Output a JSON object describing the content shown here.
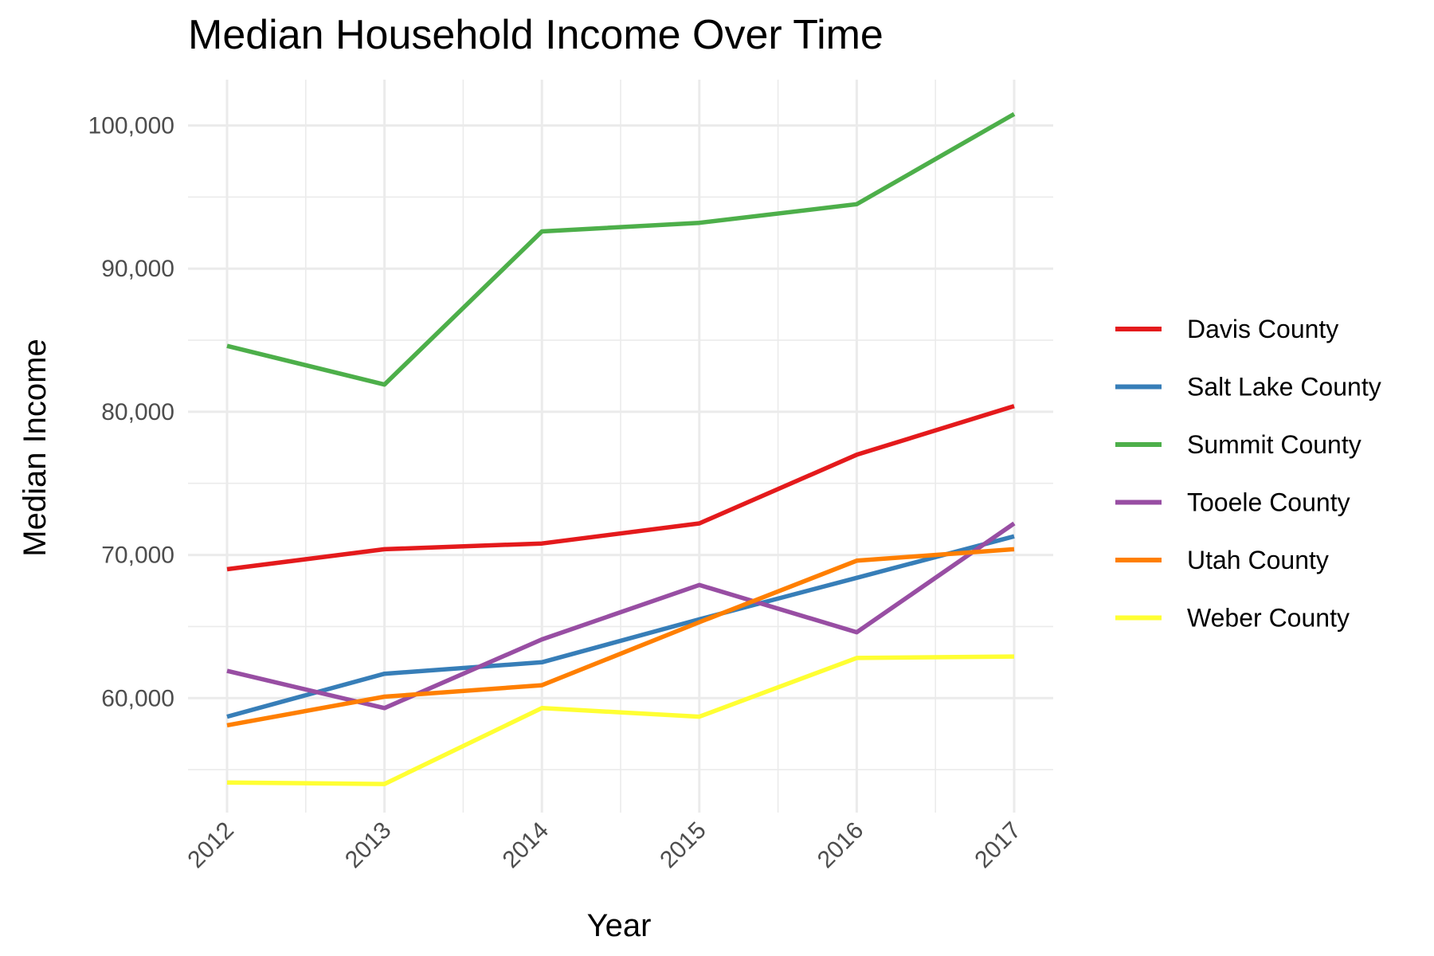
{
  "chart_data": {
    "type": "line",
    "title": "Median Household Income Over Time",
    "xlabel": "Year",
    "ylabel": "Median Income",
    "x": [
      2012,
      2013,
      2014,
      2015,
      2016,
      2017
    ],
    "x_tick_labels": [
      "2012",
      "2013",
      "2014",
      "2015",
      "2016",
      "2017"
    ],
    "y_ticks": [
      60000,
      70000,
      80000,
      90000,
      100000
    ],
    "y_tick_labels": [
      "60,000",
      "70,000",
      "80,000",
      "90,000",
      "100,000"
    ],
    "ylim": [
      52000,
      103200
    ],
    "grid": true,
    "legend_position": "right",
    "series": [
      {
        "name": "Davis County",
        "color": "#E41A1C",
        "values": [
          69000,
          70400,
          70800,
          72200,
          77000,
          80400
        ]
      },
      {
        "name": "Salt Lake County",
        "color": "#377EB8",
        "values": [
          58700,
          61700,
          62500,
          65500,
          68400,
          71300
        ]
      },
      {
        "name": "Summit County",
        "color": "#4DAF4A",
        "values": [
          84600,
          81900,
          92600,
          93200,
          94500,
          100800
        ]
      },
      {
        "name": "Tooele County",
        "color": "#984EA3",
        "values": [
          61900,
          59300,
          64100,
          67900,
          64600,
          72200
        ]
      },
      {
        "name": "Utah County",
        "color": "#FF7F00",
        "values": [
          58100,
          60100,
          60900,
          65300,
          69600,
          70400
        ]
      },
      {
        "name": "Weber County",
        "color": "#FFFF33",
        "values": [
          54100,
          54000,
          59300,
          58700,
          62800,
          62900
        ]
      }
    ]
  }
}
